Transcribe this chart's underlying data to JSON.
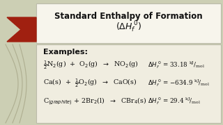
{
  "bg_color": "#cccfb4",
  "title_box_color": "#f7f5ec",
  "content_box_color": "#f0ede0",
  "accent_color": "#a02010",
  "title_line1": "Standard Enthalpy of Formation",
  "body_fontsize": 6.8,
  "label_fontsize": 8.0,
  "title_fontsize": 8.5,
  "curve_color": "#9a9878",
  "text_color": "#111111"
}
